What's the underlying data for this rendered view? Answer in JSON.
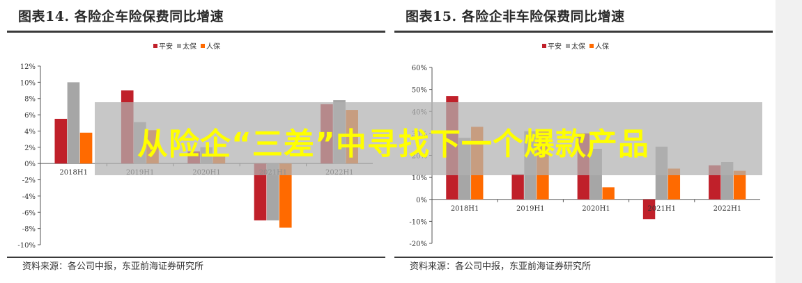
{
  "overlay": {
    "text": "从险企“三差”中寻找下一个爆款产品"
  },
  "chart_data": [
    {
      "type": "bar",
      "title": "图表14. 各险企车险保费同比增速",
      "source": "资料来源：各公司中报，东亚前海证券研究所",
      "categories": [
        "2018H1",
        "2019H1",
        "2020H1",
        "2021H1",
        "2022H1"
      ],
      "series": [
        {
          "name": "平安",
          "color": "#c0202a",
          "values": [
            5.5,
            9.0,
            1.5,
            -7.0,
            7.3
          ]
        },
        {
          "name": "太保",
          "color": "#a6a6a6",
          "values": [
            10.0,
            5.1,
            2.0,
            -7.0,
            7.8
          ]
        },
        {
          "name": "人保",
          "color": "#ff6a00",
          "values": [
            3.8,
            4.1,
            1.0,
            -7.9,
            6.6
          ]
        }
      ],
      "ylim": [
        -10,
        12
      ],
      "yticks": [
        "12%",
        "10%",
        "8%",
        "6%",
        "4%",
        "2%",
        "0%",
        "-2%",
        "-4%",
        "-6%",
        "-8%",
        "-10%"
      ],
      "legend": "top-center",
      "grid": false
    },
    {
      "type": "bar",
      "title": "图表15. 各险企非车险保费同比增速",
      "source": "资料来源：各公司中报，东亚前海证券研究所",
      "categories": [
        "2018H1",
        "2019H1",
        "2020H1",
        "2021H1",
        "2022H1"
      ],
      "series": [
        {
          "name": "平安",
          "color": "#c0202a",
          "values": [
            47,
            11.5,
            30,
            -9,
            15.5
          ]
        },
        {
          "name": "太保",
          "color": "#a6a6a6",
          "values": [
            28,
            31,
            23,
            24,
            17
          ]
        },
        {
          "name": "人保",
          "color": "#ff6a00",
          "values": [
            33,
            31,
            5.5,
            14,
            13
          ]
        }
      ],
      "ylim": [
        -20,
        60
      ],
      "yticks": [
        "60%",
        "50%",
        "40%",
        "30%",
        "20%",
        "10%",
        "0%",
        "-10%",
        "-20%"
      ],
      "legend": "top-center",
      "grid": false
    }
  ]
}
